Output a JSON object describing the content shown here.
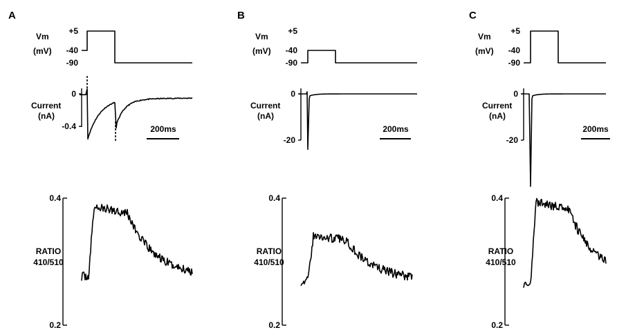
{
  "chart_data": [
    {
      "panel": "A",
      "voltage_protocol": {
        "ylabel": "Vm",
        "yunit": "(mV)",
        "ticks": [
          "+5",
          "-40",
          "-90"
        ],
        "holding_mv": -40,
        "step_mv": 5,
        "post_mv": -90
      },
      "current": {
        "type": "line",
        "ylabel": "Current",
        "yunit": "(nA)",
        "ticks": [
          "0",
          "-0.4"
        ],
        "ylim": [
          -0.6,
          0.05
        ],
        "peak_on_na": -0.58,
        "tail_na": -0.42,
        "scale_bar": "200ms"
      },
      "ratio": {
        "type": "line",
        "ylabel": "RATIO",
        "ylabel2": "410/510",
        "ticks": [
          "0.4",
          "0.2"
        ],
        "ylim": [
          0.2,
          0.4
        ],
        "baseline": 0.277,
        "peak": 0.386,
        "end": 0.277,
        "decay_tau_ms": 160
      }
    },
    {
      "panel": "B",
      "voltage_protocol": {
        "ylabel": "Vm",
        "yunit": "(mV)",
        "ticks": [
          "+5",
          "-40",
          "-90"
        ],
        "holding_mv": -90,
        "step_mv": -40,
        "post_mv": -90
      },
      "current": {
        "type": "line",
        "ylabel": "Current",
        "yunit": "(nA)",
        "ticks": [
          "0",
          "-20"
        ],
        "ylim": [
          -25,
          1
        ],
        "peak_on_na": -24,
        "scale_bar": "200ms"
      },
      "ratio": {
        "type": "line",
        "ylabel": "RATIO",
        "ylabel2": "410/510",
        "ticks": [
          "0.4",
          "0.2"
        ],
        "ylim": [
          0.2,
          0.4
        ],
        "baseline": 0.269,
        "peak": 0.34,
        "end": 0.271,
        "decay_tau_ms": 170
      }
    },
    {
      "panel": "C",
      "voltage_protocol": {
        "ylabel": "Vm",
        "yunit": "(mV)",
        "ticks": [
          "+5",
          "-40",
          "-90"
        ],
        "holding_mv": -90,
        "step_mv": 5,
        "post_mv": -90
      },
      "current": {
        "type": "line",
        "ylabel": "Current",
        "yunit": "(nA)",
        "ticks": [
          "0",
          "-20"
        ],
        "ylim": [
          -40,
          1
        ],
        "peak_on_na": -40,
        "scale_bar": "200ms"
      },
      "ratio": {
        "type": "line",
        "ylabel": "RATIO",
        "ylabel2": "410/510",
        "ticks": [
          "0.4",
          "0.2"
        ],
        "ylim": [
          0.2,
          0.4
        ],
        "baseline": 0.266,
        "peak": 0.393,
        "end": 0.283,
        "decay_tau_ms": 150
      }
    }
  ]
}
